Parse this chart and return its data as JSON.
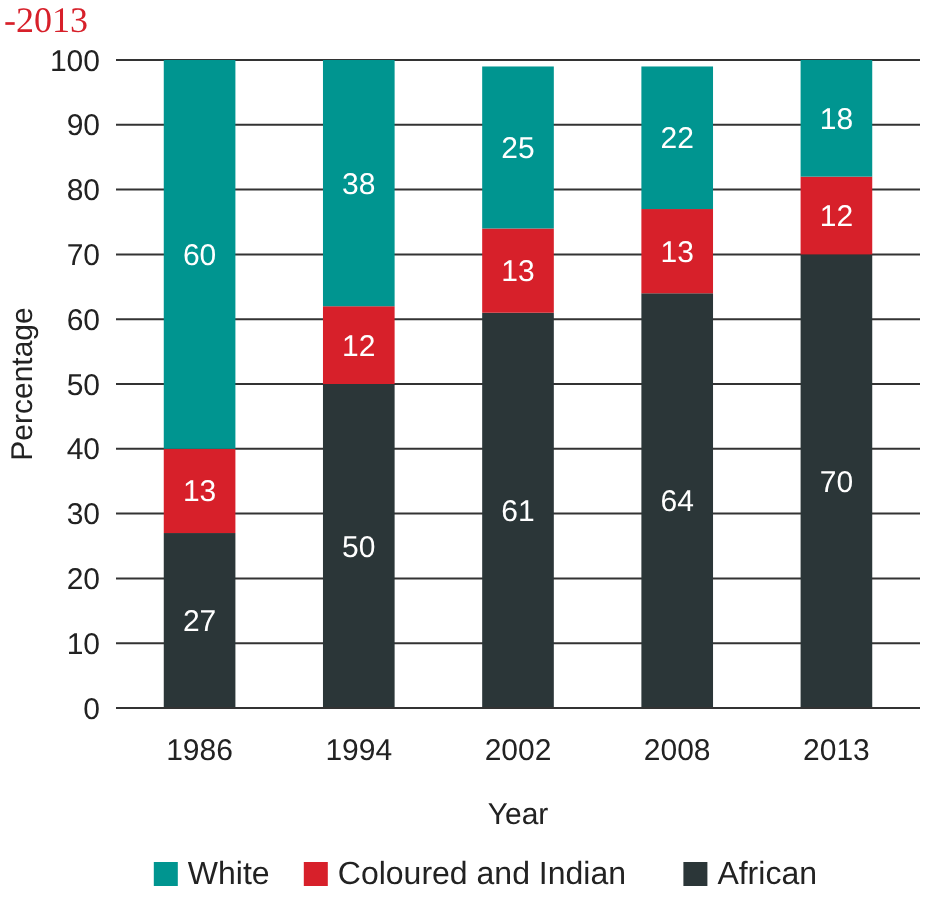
{
  "chart_data": {
    "type": "bar",
    "title": "-2013",
    "xlabel": "Year",
    "ylabel": "Percentage",
    "categories": [
      "1986",
      "1994",
      "2002",
      "2008",
      "2013"
    ],
    "stacked": true,
    "data_labels": true,
    "grid": "y",
    "legend": "bottom",
    "ylim": [
      0,
      100
    ],
    "yticks": [
      0,
      10,
      20,
      30,
      40,
      50,
      60,
      70,
      80,
      90,
      100
    ],
    "series": [
      {
        "name": "African",
        "color": "#2b3638",
        "values": [
          27,
          50,
          61,
          64,
          70
        ]
      },
      {
        "name": "Coloured and Indian",
        "color": "#d7202a",
        "values": [
          13,
          12,
          13,
          13,
          12
        ]
      },
      {
        "name": "White",
        "color": "#009590",
        "values": [
          60,
          38,
          25,
          22,
          18
        ]
      }
    ]
  }
}
